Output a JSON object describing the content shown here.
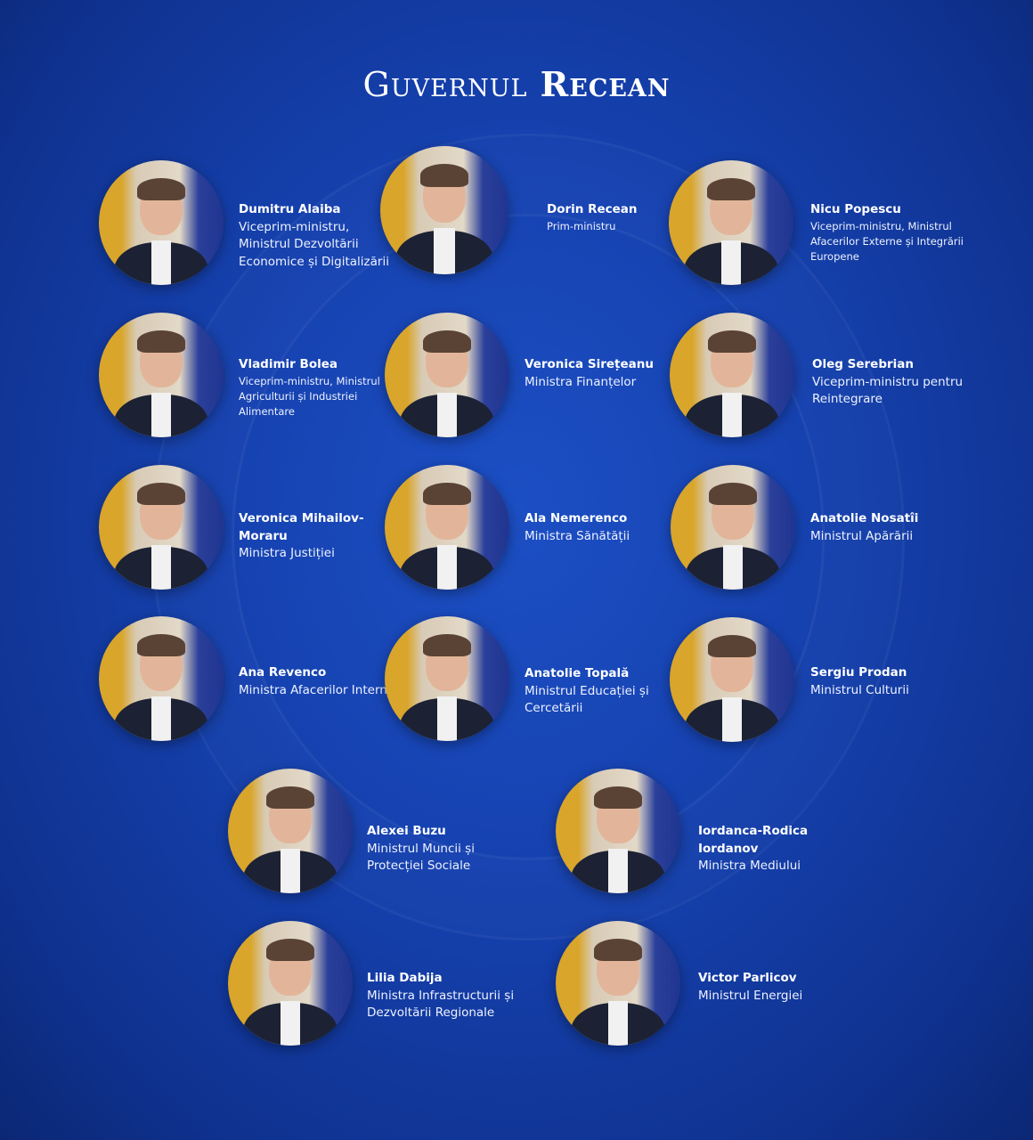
{
  "title": {
    "part1": "Guvernul",
    "part2": "Recean"
  },
  "members": [
    {
      "name": "Dumitru Alaiba",
      "role": "Viceprim-ministru, Ministrul Dezvoltării Economice și Digitalizării"
    },
    {
      "name": "Dorin Recean",
      "role": "Prim-ministru"
    },
    {
      "name": "Nicu Popescu",
      "role": "Viceprim-ministru, Ministrul Afacerilor Externe și Integrării Europene"
    },
    {
      "name": "Vladimir Bolea",
      "role": "Viceprim-ministru, Ministrul Agriculturii și Industriei Alimentare"
    },
    {
      "name": "Veronica Sirețeanu",
      "role": "Ministra Finanțelor"
    },
    {
      "name": "Oleg Serebrian",
      "role": "Viceprim-ministru pentru Reintegrare"
    },
    {
      "name": "Veronica Mihailov-Moraru",
      "role": "Ministra Justiției"
    },
    {
      "name": "Ala Nemerenco",
      "role": "Ministra Sănătății"
    },
    {
      "name": "Anatolie Nosatîi",
      "role": "Ministrul Apărării"
    },
    {
      "name": "Ana Revenco",
      "role": "Ministra Afacerilor Interne"
    },
    {
      "name": "Anatolie Topală",
      "role": "Ministrul Educației și Cercetării"
    },
    {
      "name": "Sergiu Prodan",
      "role": "Ministrul Culturii"
    },
    {
      "name": "Alexei Buzu",
      "role": "Ministrul Muncii și Protecției Sociale"
    },
    {
      "name": "Iordanca-Rodica Iordanov",
      "role": "Ministra Mediului"
    },
    {
      "name": "Lilia Dabija",
      "role": "Ministra Infrastructurii și Dezvoltării Regionale"
    },
    {
      "name": "Victor Parlicov",
      "role": "Ministrul Energiei"
    }
  ]
}
